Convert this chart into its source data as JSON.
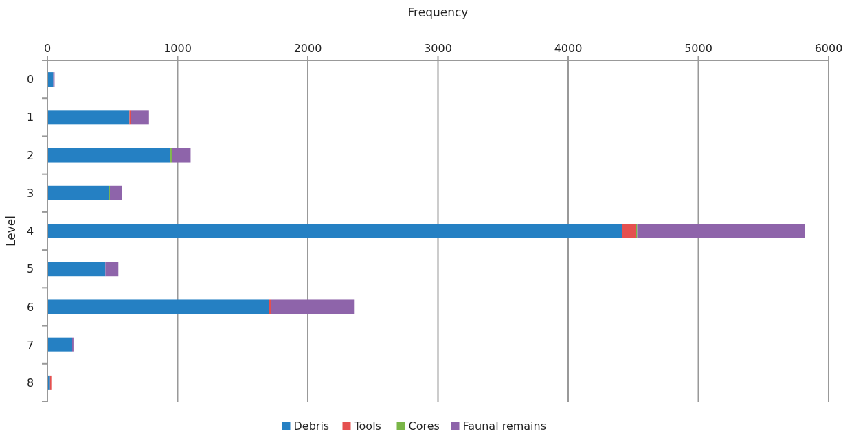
{
  "chart_data": {
    "type": "bar",
    "orientation": "horizontal",
    "stacked": true,
    "xlabel": "Frequency",
    "ylabel": "Level",
    "categories": [
      "0",
      "1",
      "2",
      "3",
      "4",
      "5",
      "6",
      "7",
      "8"
    ],
    "series": [
      {
        "name": "Debris",
        "color": "#2580c3",
        "values": [
          45,
          630,
          945,
          470,
          4415,
          445,
          1700,
          190,
          20
        ]
      },
      {
        "name": "Tools",
        "color": "#e5504f",
        "values": [
          0,
          10,
          0,
          0,
          105,
          0,
          15,
          0,
          10
        ]
      },
      {
        "name": "Cores",
        "color": "#7ab648",
        "values": [
          0,
          0,
          10,
          10,
          10,
          0,
          0,
          0,
          0
        ]
      },
      {
        "name": "Faunal remains",
        "color": "#8e64aa",
        "values": [
          10,
          140,
          145,
          90,
          1290,
          100,
          640,
          10,
          0
        ]
      }
    ],
    "xlim": [
      0,
      6000
    ],
    "xticks": [
      0,
      1000,
      2000,
      3000,
      4000,
      5000,
      6000
    ],
    "grid": "x",
    "legend": "bottom"
  }
}
